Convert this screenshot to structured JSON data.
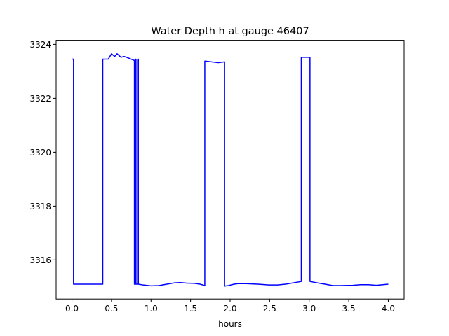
{
  "chart_data": {
    "type": "line",
    "title": "Water Depth h at gauge 46407",
    "xlabel": "hours",
    "ylabel": "",
    "xlim": [
      -0.2,
      4.2
    ],
    "ylim": [
      3314.55,
      3324.15
    ],
    "x_ticks": [
      0.0,
      0.5,
      1.0,
      1.5,
      2.0,
      2.5,
      3.0,
      3.5,
      4.0
    ],
    "x_tick_labels": [
      "0.0",
      "0.5",
      "1.0",
      "1.5",
      "2.0",
      "2.5",
      "3.0",
      "3.5",
      "4.0"
    ],
    "y_ticks": [
      3316,
      3318,
      3320,
      3322,
      3324
    ],
    "y_tick_labels": [
      "3316",
      "3318",
      "3320",
      "3322",
      "3324"
    ],
    "grid": false,
    "legend": "none",
    "series": [
      {
        "color": "#0000ff",
        "x": [
          0.0,
          0.02,
          0.02,
          0.39,
          0.39,
          0.46,
          0.5,
          0.54,
          0.57,
          0.62,
          0.66,
          0.71,
          0.79,
          0.79,
          0.8,
          0.8,
          0.81,
          0.81,
          0.83,
          0.83,
          0.84,
          0.84,
          0.9,
          1.0,
          1.1,
          1.2,
          1.3,
          1.37,
          1.45,
          1.55,
          1.62,
          1.68,
          1.68,
          1.85,
          1.93,
          1.93,
          1.98,
          2.05,
          2.1,
          2.2,
          2.35,
          2.5,
          2.6,
          2.7,
          2.8,
          2.9,
          2.9,
          2.97,
          2.97,
          3.01,
          3.01,
          3.1,
          3.2,
          3.3,
          3.4,
          3.55,
          3.65,
          3.75,
          3.85,
          4.0
        ],
        "y": [
          3323.45,
          3323.45,
          3315.1,
          3315.1,
          3323.45,
          3323.45,
          3323.65,
          3323.55,
          3323.65,
          3323.52,
          3323.55,
          3323.5,
          3323.4,
          3315.1,
          3315.1,
          3323.45,
          3323.45,
          3315.1,
          3315.1,
          3323.45,
          3323.45,
          3315.1,
          3315.07,
          3315.04,
          3315.05,
          3315.1,
          3315.15,
          3315.16,
          3315.14,
          3315.13,
          3315.1,
          3315.05,
          3323.38,
          3323.32,
          3323.35,
          3315.03,
          3315.05,
          3315.1,
          3315.12,
          3315.12,
          3315.1,
          3315.07,
          3315.07,
          3315.1,
          3315.15,
          3315.2,
          3323.52,
          3323.52,
          3323.52,
          3323.52,
          3315.2,
          3315.15,
          3315.1,
          3315.05,
          3315.05,
          3315.06,
          3315.08,
          3315.08,
          3315.06,
          3315.1
        ]
      }
    ]
  }
}
